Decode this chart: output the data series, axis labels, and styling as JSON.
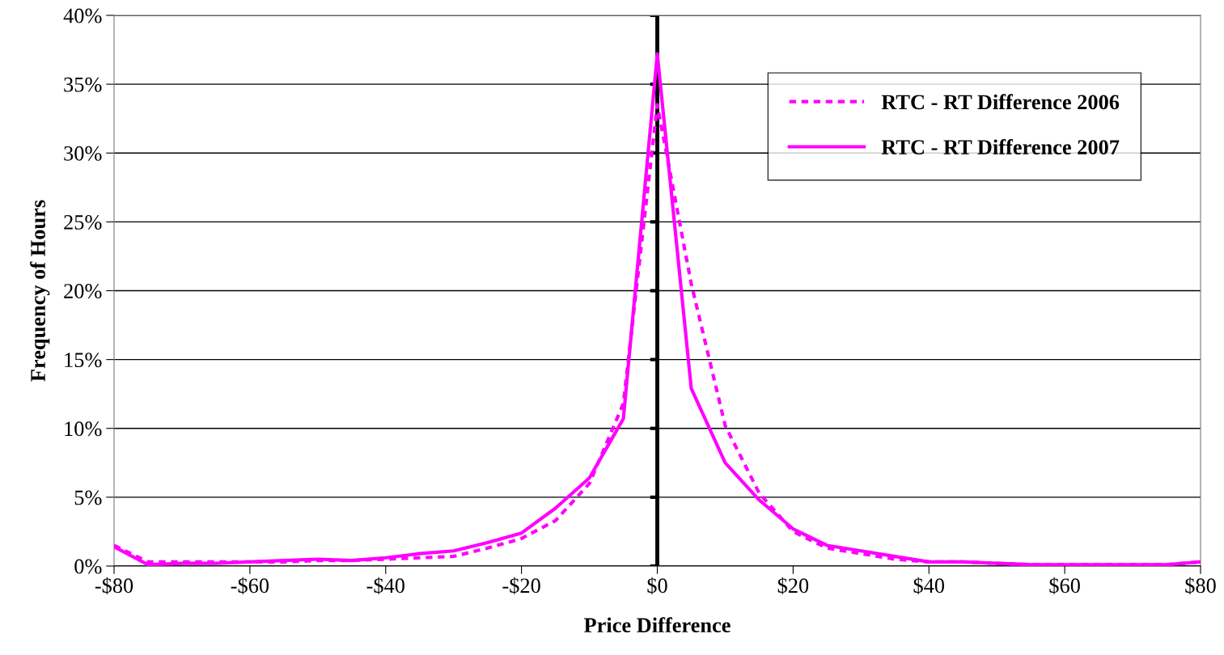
{
  "chart_data": {
    "type": "line",
    "xlabel": "Price Difference",
    "ylabel": "Frequency of Hours",
    "x": [
      -80,
      -75,
      -70,
      -65,
      -60,
      -55,
      -50,
      -45,
      -40,
      -35,
      -30,
      -25,
      -20,
      -15,
      -10,
      -5,
      0,
      5,
      10,
      15,
      20,
      25,
      30,
      35,
      40,
      45,
      50,
      55,
      60,
      65,
      70,
      75,
      80
    ],
    "series": [
      {
        "name": "RTC - RT Difference 2006",
        "color": "#ff00ff",
        "line_style": "dashed",
        "values": [
          1.5,
          0.3,
          0.3,
          0.3,
          0.3,
          0.3,
          0.4,
          0.4,
          0.5,
          0.6,
          0.7,
          1.3,
          2.0,
          3.3,
          6.0,
          11.8,
          33.5,
          20.5,
          10.2,
          5.3,
          2.5,
          1.3,
          0.9,
          0.5,
          0.3,
          0.3,
          0.2,
          0.1,
          0.1,
          0.1,
          0.1,
          0.1,
          0.3
        ]
      },
      {
        "name": "RTC - RT Difference 2007",
        "color": "#ff00ff",
        "line_style": "solid",
        "values": [
          1.4,
          0.1,
          0.2,
          0.2,
          0.3,
          0.4,
          0.5,
          0.4,
          0.6,
          0.9,
          1.1,
          1.7,
          2.4,
          4.2,
          6.4,
          10.7,
          37.2,
          12.9,
          7.5,
          4.8,
          2.7,
          1.5,
          1.1,
          0.7,
          0.3,
          0.3,
          0.2,
          0.1,
          0.1,
          0.1,
          0.1,
          0.1,
          0.3
        ]
      }
    ],
    "xlim": [
      -80,
      80
    ],
    "xticks": [
      {
        "value": -80,
        "label": "-$80"
      },
      {
        "value": -60,
        "label": "-$60"
      },
      {
        "value": -40,
        "label": "-$40"
      },
      {
        "value": -20,
        "label": "-$20"
      },
      {
        "value": 0,
        "label": "$0"
      },
      {
        "value": 20,
        "label": "$20"
      },
      {
        "value": 40,
        "label": "$40"
      },
      {
        "value": 60,
        "label": "$60"
      },
      {
        "value": 80,
        "label": "$80"
      }
    ],
    "ylim": [
      0,
      40
    ],
    "yticks": [
      {
        "value": 0,
        "label": "0%"
      },
      {
        "value": 5,
        "label": "5%"
      },
      {
        "value": 10,
        "label": "10%"
      },
      {
        "value": 15,
        "label": "15%"
      },
      {
        "value": 20,
        "label": "20%"
      },
      {
        "value": 25,
        "label": "25%"
      },
      {
        "value": 30,
        "label": "30%"
      },
      {
        "value": 35,
        "label": "35%"
      },
      {
        "value": 40,
        "label": "40%"
      }
    ],
    "grid": "y",
    "legend": "top right",
    "marker": "none",
    "ref_lines": [
      {
        "axis": "x",
        "value": 0,
        "color": "#000000"
      }
    ]
  }
}
